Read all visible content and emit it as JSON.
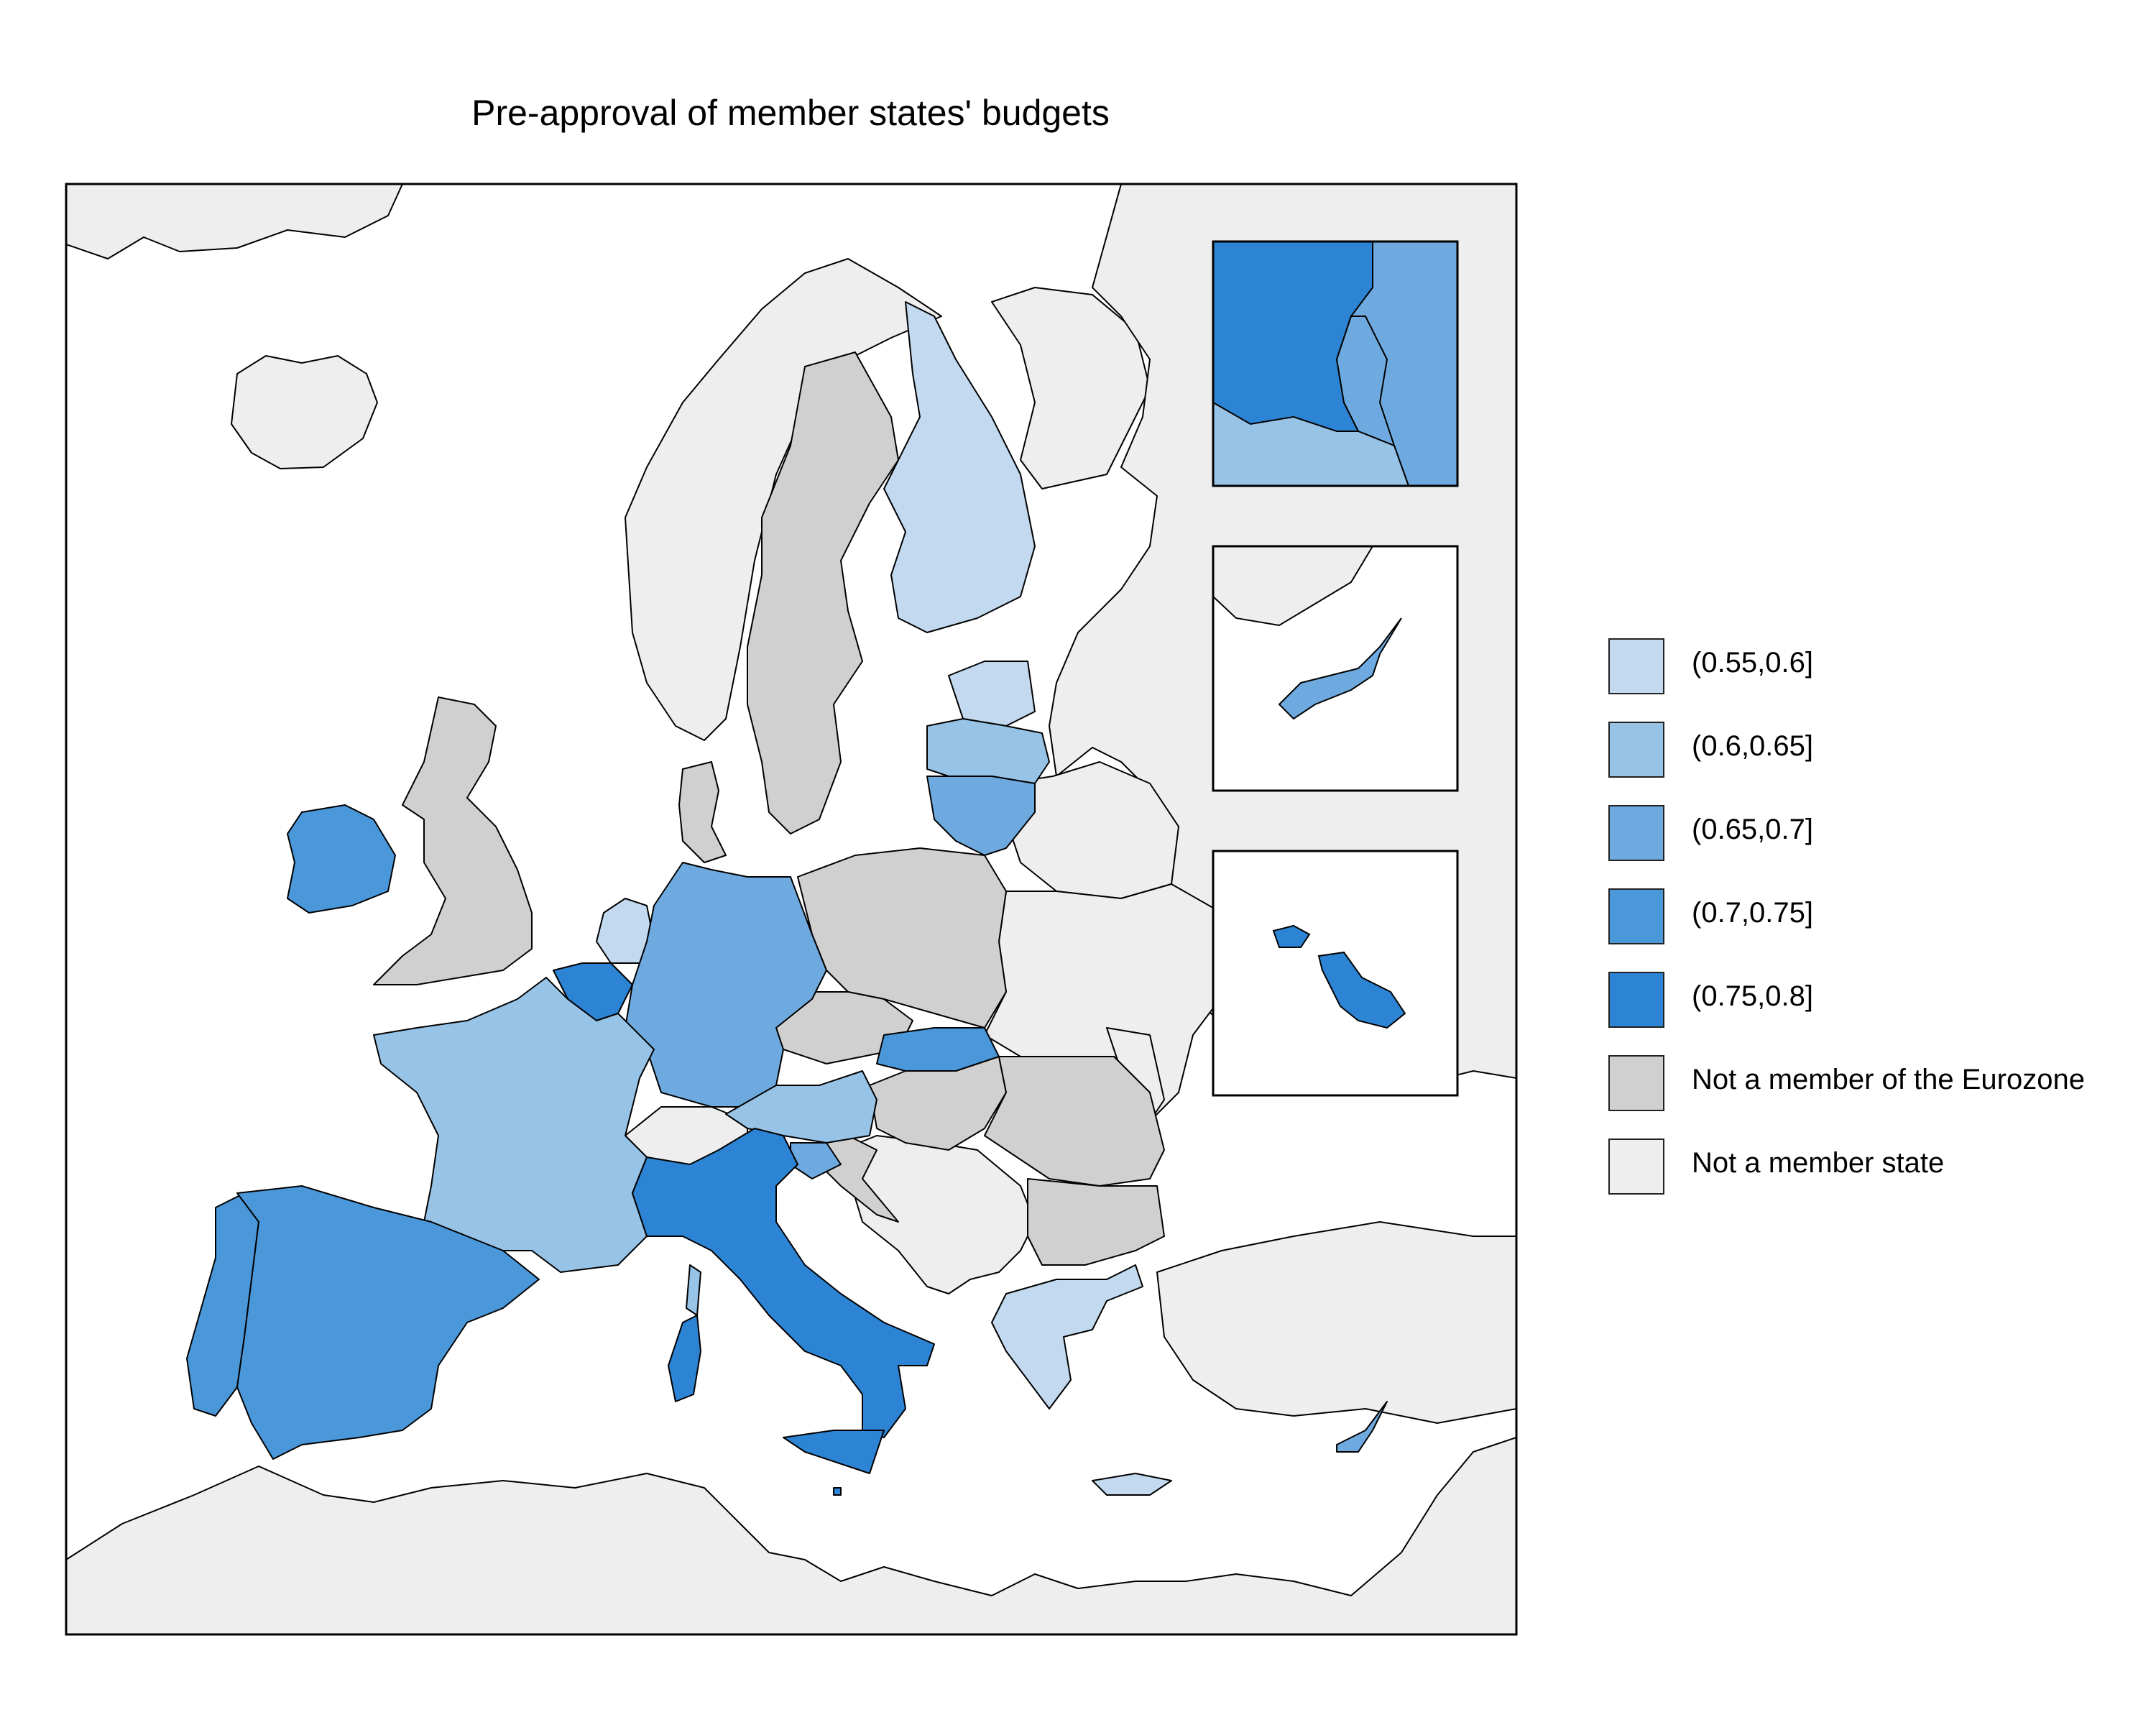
{
  "map": {
    "title": "Pre-approval of member states' budgets",
    "colors": {
      "land_non_member": "#eeeeee",
      "non_eurozone": "#d0d0d0",
      "sea": "#ffffff",
      "border": "#000000"
    },
    "classes": [
      {
        "label": "(0.55,0.6]",
        "color": "#c2d9ef"
      },
      {
        "label": "(0.6,0.65]",
        "color": "#97c3e7"
      },
      {
        "label": "(0.65,0.7]",
        "color": "#6eaadf"
      },
      {
        "label": "(0.7,0.75]",
        "color": "#4a97da"
      },
      {
        "label": "(0.75,0.8]",
        "color": "#2d84d4"
      },
      {
        "label": "Not a member of the Eurozone",
        "color": "#d0d0d0"
      },
      {
        "label": "Not a member state",
        "color": "#eeeeee"
      }
    ],
    "insets": [
      "Benelux (Luxembourg)",
      "Cyprus",
      "Malta"
    ]
  }
}
